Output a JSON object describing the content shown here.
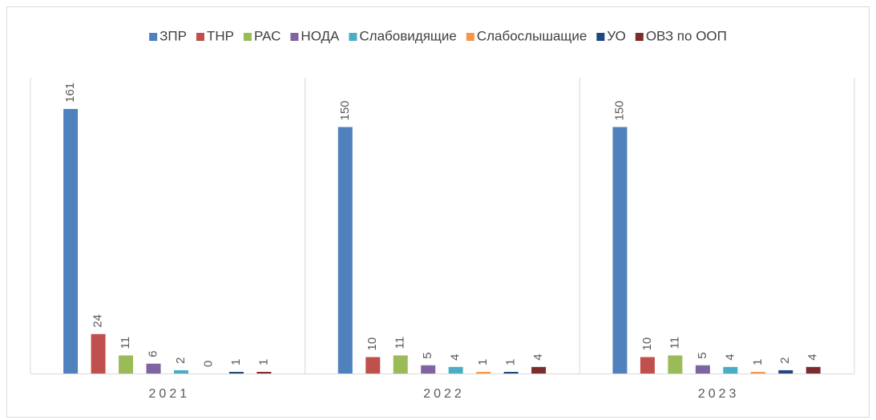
{
  "chart_data": {
    "type": "bar",
    "categories": [
      "2021",
      "2022",
      "2023"
    ],
    "series": [
      {
        "name": "ЗПР",
        "color": "#4f81bd",
        "values": [
          161,
          150,
          150
        ]
      },
      {
        "name": "ТНР",
        "color": "#c0504d",
        "values": [
          24,
          10,
          10
        ]
      },
      {
        "name": "РАС",
        "color": "#9bbb59",
        "values": [
          11,
          11,
          11
        ]
      },
      {
        "name": "НОДА",
        "color": "#8064a2",
        "values": [
          6,
          5,
          5
        ]
      },
      {
        "name": "Слабовидящие",
        "color": "#4bacc6",
        "values": [
          2,
          4,
          4
        ]
      },
      {
        "name": "Слабослышащие",
        "color": "#f79646",
        "values": [
          0,
          1,
          1
        ]
      },
      {
        "name": "УО",
        "color": "#1f497d",
        "values": [
          1,
          1,
          2
        ]
      },
      {
        "name": "ОВЗ по ООП",
        "color": "#7b2c2c",
        "values": [
          1,
          4,
          4
        ]
      }
    ],
    "ylim": [
      0,
      180
    ],
    "legend": "top"
  }
}
